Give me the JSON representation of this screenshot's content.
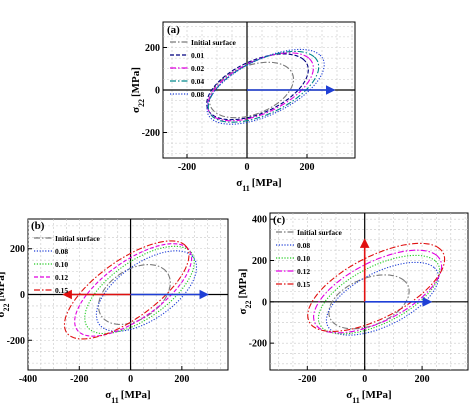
{
  "chart_data": [
    {
      "type": "line",
      "panel_label": "(a)",
      "xlabel": "σ11 [MPa]",
      "ylabel": "σ22 [MPa]",
      "xlim": [
        -280,
        360
      ],
      "ylim": [
        -320,
        320
      ],
      "xticks": [
        -200,
        0,
        200
      ],
      "yticks": [
        -200,
        0,
        200
      ],
      "grid": true,
      "legend": "top-left",
      "arrows": [
        {
          "color": "#1f3fd6",
          "from": [
            0,
            0
          ],
          "to": [
            290,
            0
          ]
        }
      ],
      "series": [
        {
          "name": "Initial surface",
          "color": "#7a7a7a",
          "dash": "dashdot",
          "a": 160,
          "b": 105,
          "cx": 15,
          "cy": 0
        },
        {
          "name": "0.01",
          "color": "#000080",
          "dash": "dash",
          "a": 200,
          "b": 112,
          "cx": 35,
          "cy": 15
        },
        {
          "name": "0.02",
          "color": "#e000e0",
          "dash": "dashdot",
          "a": 210,
          "b": 112,
          "cx": 45,
          "cy": 15
        },
        {
          "name": "0.04",
          "color": "#00868b",
          "dash": "dashdot",
          "a": 220,
          "b": 115,
          "cx": 55,
          "cy": 15
        },
        {
          "name": "0.08",
          "color": "#1f3fd6",
          "dash": "dot",
          "a": 235,
          "b": 118,
          "cx": 62,
          "cy": 15
        }
      ]
    },
    {
      "type": "line",
      "panel_label": "(b)",
      "xlabel": "σ11 [MPa]",
      "ylabel": "σ22 [MPa]",
      "xlim": [
        -400,
        380
      ],
      "ylim": [
        -330,
        330
      ],
      "xticks": [
        -400,
        -200,
        0,
        200
      ],
      "yticks": [
        -200,
        0,
        200
      ],
      "grid": true,
      "legend": "top-left",
      "arrows": [
        {
          "color": "#e01010",
          "from": [
            0,
            0
          ],
          "to": [
            -260,
            0
          ]
        },
        {
          "color": "#1f3fd6",
          "from": [
            0,
            0
          ],
          "to": [
            300,
            0
          ]
        }
      ],
      "series": [
        {
          "name": "Initial surface",
          "color": "#7a7a7a",
          "dash": "dashdot",
          "a": 160,
          "b": 105,
          "cx": 15,
          "cy": 0
        },
        {
          "name": "0.08",
          "color": "#1f3fd6",
          "dash": "dot",
          "a": 235,
          "b": 118,
          "cx": 62,
          "cy": 15
        },
        {
          "name": "0.10",
          "color": "#22cc22",
          "dash": "dot",
          "a": 260,
          "b": 120,
          "cx": 35,
          "cy": 20
        },
        {
          "name": "0.12",
          "color": "#e000e0",
          "dash": "dash",
          "a": 280,
          "b": 120,
          "cx": 10,
          "cy": 20
        },
        {
          "name": "0.15",
          "color": "#e01010",
          "dash": "dashdot",
          "a": 300,
          "b": 122,
          "cx": -15,
          "cy": 20
        }
      ]
    },
    {
      "type": "line",
      "panel_label": "(c)",
      "xlabel": "σ11 [MPa]",
      "ylabel": "σ22 [MPa]",
      "xlim": [
        -330,
        360
      ],
      "ylim": [
        -330,
        430
      ],
      "xticks": [
        -200,
        0,
        200
      ],
      "yticks": [
        -200,
        0,
        200,
        400
      ],
      "grid": true,
      "legend": "top-left",
      "arrows": [
        {
          "color": "#e01010",
          "from": [
            0,
            0
          ],
          "to": [
            0,
            300
          ]
        },
        {
          "color": "#1f3fd6",
          "from": [
            0,
            0
          ],
          "to": [
            230,
            0
          ]
        }
      ],
      "series": [
        {
          "name": "Initial surface",
          "color": "#7a7a7a",
          "dash": "dashdot",
          "a": 160,
          "b": 105,
          "cx": 15,
          "cy": 0
        },
        {
          "name": "0.08",
          "color": "#1f3fd6",
          "dash": "dot",
          "a": 235,
          "b": 118,
          "cx": 62,
          "cy": 15
        },
        {
          "name": "0.10",
          "color": "#22cc22",
          "dash": "dot",
          "a": 255,
          "b": 125,
          "cx": 50,
          "cy": 35
        },
        {
          "name": "0.12",
          "color": "#e000e0",
          "dash": "dashdot",
          "a": 270,
          "b": 130,
          "cx": 45,
          "cy": 50
        },
        {
          "name": "0.15",
          "color": "#e01010",
          "dash": "dashdot",
          "a": 290,
          "b": 135,
          "cx": 40,
          "cy": 70
        }
      ]
    }
  ]
}
